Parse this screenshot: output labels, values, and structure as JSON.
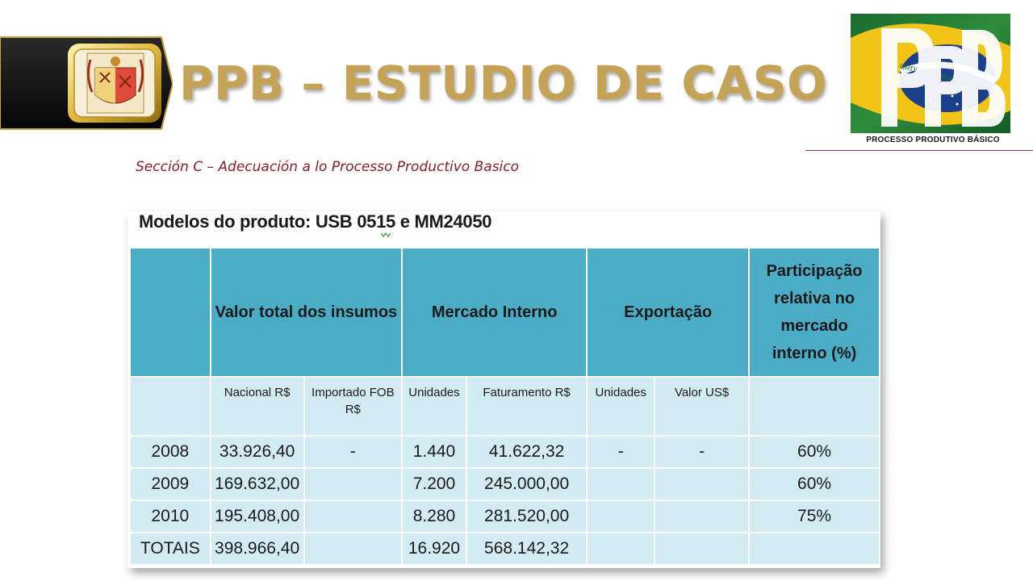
{
  "header": {
    "title": "PPB – ESTUDIO DE CASO",
    "subtitle": "Sección C – Adecuación a lo Processo Productivo Basico",
    "logo_caption": "PROCESSO PRODUTIVO BÁSICO",
    "logo_text": "ORDEM E PROGRESSO"
  },
  "table": {
    "title": "Modelos do produto: USB 0515 e  MM24050",
    "group_headers": [
      "",
      "Valor total dos insumos",
      "Mercado Interno",
      "Exportação",
      "Participação relativa no mercado interno (%)"
    ],
    "sub_headers": [
      "",
      "Nacional R$",
      "Importado FOB R$",
      "Unidades",
      "Faturamento R$",
      "Unidades",
      "Valor US$",
      ""
    ],
    "rows": [
      [
        "2008",
        "33.926,40",
        "-",
        "1.440",
        "41.622,32",
        "-",
        "-",
        "60%"
      ],
      [
        "2009",
        "169.632,00",
        "",
        "7.200",
        "245.000,00",
        "",
        "",
        "60%"
      ],
      [
        "2010",
        "195.408,00",
        "",
        "8.280",
        "281.520,00",
        "",
        "",
        "75%"
      ],
      [
        "TOTAIS",
        "398.966,40",
        "",
        "16.920",
        "568.142,32",
        "",
        "",
        ""
      ]
    ]
  },
  "colors": {
    "title_gold": "#c5a356",
    "subtitle_red": "#8b1c2a",
    "header_blue": "#4bacc6",
    "cell_light_blue": "#d2ebf2",
    "rule_red": "#a8363a"
  }
}
